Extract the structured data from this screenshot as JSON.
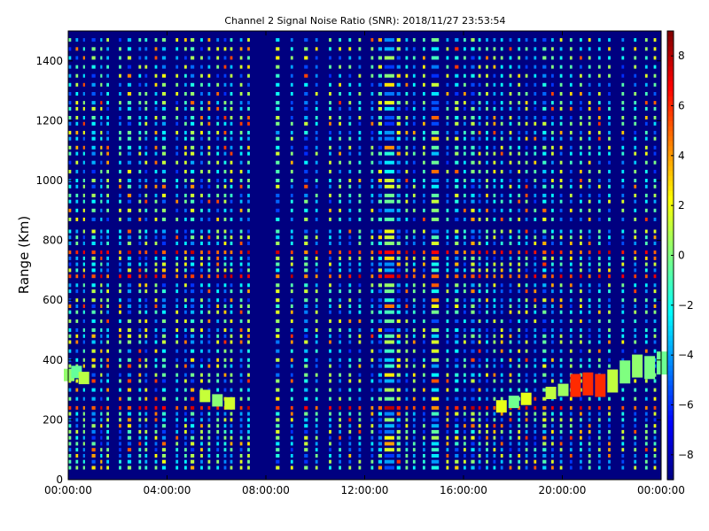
{
  "chart_data": {
    "type": "heatmap",
    "title": "Channel 2 Signal Noise Ratio (SNR): 2018/11/27 23:53:54",
    "xlabel": "",
    "ylabel": "Range (Km)",
    "x_ticks": [
      "00:00:00",
      "04:00:00",
      "08:00:00",
      "12:00:00",
      "16:00:00",
      "20:00:00",
      "00:00:00"
    ],
    "x_range_hours": [
      0,
      24
    ],
    "y_ticks": [
      0,
      200,
      400,
      600,
      800,
      1000,
      1200,
      1400
    ],
    "ylim": [
      0,
      1500
    ],
    "colorbar": {
      "ticks": [
        -8,
        -6,
        -4,
        -2,
        0,
        2,
        4,
        6,
        8
      ],
      "range": [
        -9,
        9
      ],
      "colormap": "jet"
    },
    "background_value": -9,
    "column_bands": [
      [
        0.0,
        0.12
      ],
      [
        0.3,
        0.4
      ],
      [
        0.6,
        0.68
      ],
      [
        0.95,
        1.1
      ],
      [
        1.3,
        1.38
      ],
      [
        1.55,
        1.65
      ],
      [
        2.05,
        2.15
      ],
      [
        2.4,
        2.55
      ],
      [
        2.85,
        2.95
      ],
      [
        3.1,
        3.2
      ],
      [
        3.5,
        3.6
      ],
      [
        3.8,
        3.95
      ],
      [
        4.35,
        4.45
      ],
      [
        4.7,
        4.8
      ],
      [
        4.95,
        5.1
      ],
      [
        5.35,
        5.45
      ],
      [
        5.65,
        5.75
      ],
      [
        6.0,
        6.1
      ],
      [
        6.3,
        6.4
      ],
      [
        6.55,
        6.65
      ],
      [
        6.95,
        7.05
      ],
      [
        7.25,
        7.35
      ],
      [
        8.4,
        8.55
      ],
      [
        9.0,
        9.1
      ],
      [
        9.55,
        9.7
      ],
      [
        10.0,
        10.1
      ],
      [
        10.55,
        10.65
      ],
      [
        10.95,
        11.05
      ],
      [
        11.35,
        11.45
      ],
      [
        11.75,
        11.85
      ],
      [
        12.25,
        12.35
      ],
      [
        12.55,
        12.7
      ],
      [
        12.8,
        13.2
      ],
      [
        13.3,
        13.45
      ],
      [
        13.65,
        13.75
      ],
      [
        13.95,
        14.05
      ],
      [
        14.35,
        14.45
      ],
      [
        14.7,
        15.0
      ],
      [
        15.3,
        15.4
      ],
      [
        15.65,
        15.8
      ],
      [
        16.0,
        16.1
      ],
      [
        16.3,
        16.45
      ],
      [
        16.6,
        16.7
      ],
      [
        16.9,
        17.0
      ],
      [
        17.2,
        17.3
      ],
      [
        17.5,
        17.6
      ],
      [
        17.85,
        17.95
      ],
      [
        18.2,
        18.3
      ],
      [
        18.5,
        18.6
      ],
      [
        18.85,
        18.95
      ],
      [
        19.2,
        19.35
      ],
      [
        19.55,
        19.65
      ],
      [
        19.9,
        20.0
      ],
      [
        20.3,
        20.4
      ],
      [
        20.7,
        20.8
      ],
      [
        21.05,
        21.15
      ],
      [
        21.45,
        21.55
      ],
      [
        21.85,
        21.95
      ],
      [
        22.4,
        22.5
      ],
      [
        22.9,
        23.0
      ],
      [
        23.35,
        23.45
      ],
      [
        23.7,
        23.8
      ]
    ],
    "range_gates_km": [
      40,
      60,
      80,
      100,
      120,
      140,
      160,
      180,
      200,
      220,
      240,
      270,
      300,
      330,
      350,
      380,
      400,
      430,
      460,
      480,
      500,
      530,
      560,
      580,
      600,
      630,
      650,
      680,
      700,
      720,
      740,
      760,
      790,
      810,
      830,
      870,
      900,
      930,
      950,
      980,
      1000,
      1030,
      1060,
      1090,
      1110,
      1140,
      1160,
      1190,
      1210,
      1240,
      1260,
      1290,
      1320,
      1350,
      1380,
      1410,
      1440,
      1470
    ],
    "strong_gates_km": [
      240,
      680,
      760,
      1400
    ],
    "echo_track": [
      {
        "x": 0.0,
        "y": 350
      },
      {
        "x": 0.3,
        "y": 360
      },
      {
        "x": 0.6,
        "y": 340
      },
      {
        "x": 5.5,
        "y": 280
      },
      {
        "x": 6.0,
        "y": 265
      },
      {
        "x": 6.5,
        "y": 255
      },
      {
        "x": 17.5,
        "y": 245
      },
      {
        "x": 18.0,
        "y": 260
      },
      {
        "x": 18.5,
        "y": 270
      },
      {
        "x": 19.5,
        "y": 290
      },
      {
        "x": 20.0,
        "y": 300
      },
      {
        "x": 20.5,
        "y": 315
      },
      {
        "x": 21.0,
        "y": 320
      },
      {
        "x": 21.5,
        "y": 315
      },
      {
        "x": 22.0,
        "y": 330
      },
      {
        "x": 22.5,
        "y": 360
      },
      {
        "x": 23.0,
        "y": 380
      },
      {
        "x": 23.5,
        "y": 375
      },
      {
        "x": 24.0,
        "y": 390
      }
    ]
  }
}
